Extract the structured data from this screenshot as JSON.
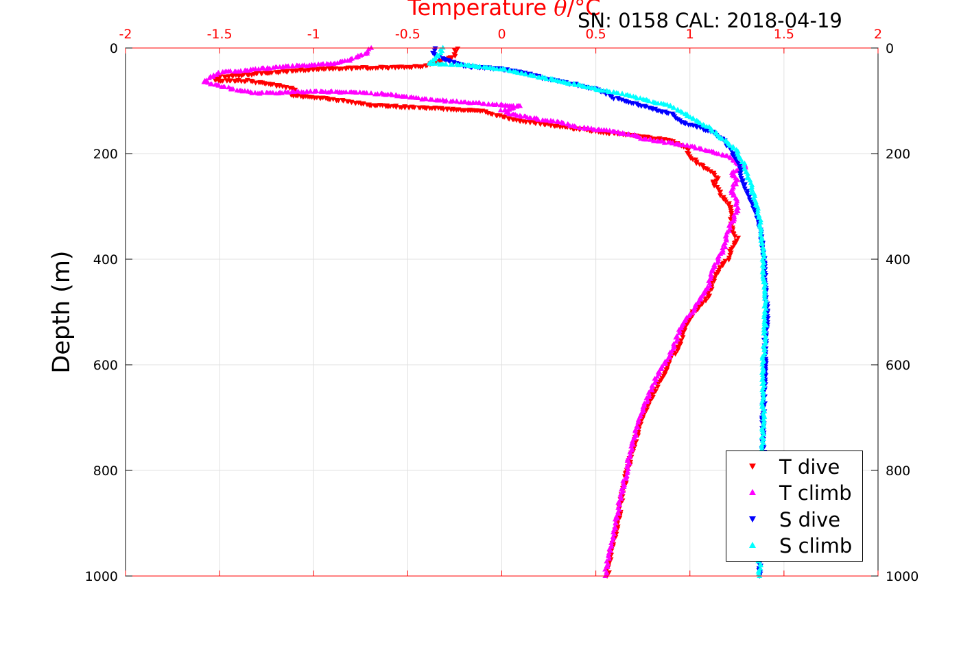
{
  "title": {
    "prefix": "Temperature ",
    "symbol": "θ",
    "suffix": "/°C"
  },
  "calibration_text": "SN: 0158  CAL: 2018-04-19",
  "ylabel": "Depth (m)",
  "colors": {
    "t_dive": "#ff0000",
    "t_climb": "#ff00ff",
    "s_dive": "#0000ff",
    "s_climb": "#00ffff",
    "top_axis": "#ff0000",
    "grid": "#e0e0e0"
  },
  "chart_data": {
    "type": "scatter",
    "title": "Temperature θ/°C",
    "xlabel": "Temperature θ/°C",
    "ylabel": "Depth (m)",
    "xlim": [
      -2,
      2
    ],
    "ylim": [
      1000,
      0
    ],
    "y_reversed": true,
    "xticks": [
      "-2",
      "-1.5",
      "-1",
      "-0.5",
      "0",
      "0.5",
      "1",
      "1.5",
      "2"
    ],
    "yticks": [
      "0",
      "200",
      "400",
      "600",
      "800",
      "1000"
    ],
    "grid": true,
    "legend_position": "bottom-right",
    "series": [
      {
        "name": "T dive",
        "marker": "triangle-down",
        "color": "#ff0000",
        "points": [
          [
            -0.24,
            0
          ],
          [
            -0.25,
            8
          ],
          [
            -0.25,
            16
          ],
          [
            -0.42,
            35
          ],
          [
            -1.0,
            40
          ],
          [
            -1.5,
            55
          ],
          [
            -1.52,
            62
          ],
          [
            -1.35,
            62
          ],
          [
            -1.25,
            68
          ],
          [
            -1.12,
            75
          ],
          [
            -1.1,
            82
          ],
          [
            -1.12,
            90
          ],
          [
            -0.95,
            95
          ],
          [
            -0.85,
            100
          ],
          [
            -0.7,
            108
          ],
          [
            -0.5,
            112
          ],
          [
            -0.35,
            114
          ],
          [
            -0.1,
            120
          ],
          [
            0.0,
            130
          ],
          [
            0.1,
            138
          ],
          [
            0.3,
            148
          ],
          [
            0.5,
            158
          ],
          [
            0.7,
            166
          ],
          [
            0.9,
            175
          ],
          [
            0.98,
            190
          ],
          [
            1.0,
            205
          ],
          [
            1.05,
            220
          ],
          [
            1.12,
            235
          ],
          [
            1.15,
            248
          ],
          [
            1.12,
            255
          ],
          [
            1.15,
            268
          ],
          [
            1.18,
            285
          ],
          [
            1.22,
            300
          ],
          [
            1.22,
            320
          ],
          [
            1.22,
            340
          ],
          [
            1.25,
            360
          ],
          [
            1.22,
            380
          ],
          [
            1.2,
            400
          ],
          [
            1.15,
            420
          ],
          [
            1.12,
            445
          ],
          [
            1.1,
            470
          ],
          [
            1.02,
            500
          ],
          [
            0.97,
            530
          ],
          [
            0.95,
            560
          ],
          [
            0.9,
            590
          ],
          [
            0.85,
            625
          ],
          [
            0.8,
            660
          ],
          [
            0.75,
            695
          ],
          [
            0.72,
            730
          ],
          [
            0.69,
            770
          ],
          [
            0.66,
            810
          ],
          [
            0.64,
            850
          ],
          [
            0.62,
            890
          ],
          [
            0.6,
            925
          ],
          [
            0.58,
            960
          ],
          [
            0.56,
            1000
          ]
        ]
      },
      {
        "name": "T climb",
        "marker": "triangle-up",
        "color": "#ff00ff",
        "points": [
          [
            -0.7,
            0
          ],
          [
            -0.72,
            10
          ],
          [
            -0.8,
            22
          ],
          [
            -0.9,
            30
          ],
          [
            -1.15,
            35
          ],
          [
            -1.35,
            42
          ],
          [
            -1.5,
            46
          ],
          [
            -1.55,
            55
          ],
          [
            -1.58,
            65
          ],
          [
            -1.5,
            72
          ],
          [
            -1.4,
            80
          ],
          [
            -1.3,
            86
          ],
          [
            -1.0,
            82
          ],
          [
            -0.8,
            84
          ],
          [
            -0.6,
            88
          ],
          [
            -0.45,
            95
          ],
          [
            -0.3,
            100
          ],
          [
            -0.1,
            105
          ],
          [
            0.1,
            110
          ],
          [
            0.0,
            118
          ],
          [
            0.05,
            125
          ],
          [
            0.2,
            135
          ],
          [
            0.3,
            140
          ],
          [
            0.4,
            150
          ],
          [
            0.55,
            156
          ],
          [
            0.7,
            165
          ],
          [
            0.75,
            172
          ],
          [
            0.9,
            180
          ],
          [
            1.0,
            186
          ],
          [
            1.1,
            195
          ],
          [
            1.2,
            205
          ],
          [
            1.25,
            218
          ],
          [
            1.3,
            225
          ],
          [
            1.22,
            235
          ],
          [
            1.25,
            250
          ],
          [
            1.22,
            270
          ],
          [
            1.25,
            290
          ],
          [
            1.25,
            310
          ],
          [
            1.22,
            330
          ],
          [
            1.2,
            350
          ],
          [
            1.18,
            380
          ],
          [
            1.15,
            400
          ],
          [
            1.12,
            420
          ],
          [
            1.1,
            450
          ],
          [
            1.05,
            480
          ],
          [
            1.0,
            505
          ],
          [
            0.95,
            530
          ],
          [
            0.92,
            560
          ],
          [
            0.88,
            590
          ],
          [
            0.82,
            625
          ],
          [
            0.78,
            660
          ],
          [
            0.74,
            695
          ],
          [
            0.71,
            730
          ],
          [
            0.68,
            770
          ],
          [
            0.66,
            810
          ],
          [
            0.63,
            850
          ],
          [
            0.61,
            890
          ],
          [
            0.59,
            925
          ],
          [
            0.57,
            960
          ],
          [
            0.55,
            1000
          ]
        ]
      },
      {
        "name": "S dive",
        "marker": "triangle-down",
        "color": "#0000ff",
        "points": [
          [
            -0.36,
            0
          ],
          [
            -0.36,
            8
          ],
          [
            -0.35,
            15
          ],
          [
            -0.2,
            34
          ],
          [
            -0.1,
            37
          ],
          [
            0.0,
            40
          ],
          [
            0.1,
            45
          ],
          [
            0.2,
            55
          ],
          [
            0.3,
            62
          ],
          [
            0.4,
            70
          ],
          [
            0.5,
            78
          ],
          [
            0.55,
            85
          ],
          [
            0.6,
            95
          ],
          [
            0.7,
            105
          ],
          [
            0.8,
            115
          ],
          [
            0.9,
            125
          ],
          [
            0.95,
            140
          ],
          [
            1.05,
            150
          ],
          [
            1.12,
            160
          ],
          [
            1.18,
            175
          ],
          [
            1.22,
            195
          ],
          [
            1.25,
            212
          ],
          [
            1.27,
            230
          ],
          [
            1.28,
            250
          ],
          [
            1.3,
            270
          ],
          [
            1.32,
            290
          ],
          [
            1.35,
            310
          ],
          [
            1.37,
            335
          ],
          [
            1.38,
            360
          ],
          [
            1.39,
            380
          ],
          [
            1.4,
            410
          ],
          [
            1.4,
            450
          ],
          [
            1.41,
            500
          ],
          [
            1.4,
            560
          ],
          [
            1.4,
            620
          ],
          [
            1.39,
            680
          ],
          [
            1.39,
            740
          ],
          [
            1.39,
            800
          ],
          [
            1.38,
            860
          ],
          [
            1.38,
            920
          ],
          [
            1.37,
            1000
          ]
        ]
      },
      {
        "name": "S climb",
        "marker": "triangle-up",
        "color": "#00ffff",
        "points": [
          [
            -0.32,
            0
          ],
          [
            -0.32,
            6
          ],
          [
            -0.38,
            30
          ],
          [
            -0.2,
            32
          ],
          [
            0.0,
            40
          ],
          [
            0.1,
            48
          ],
          [
            0.2,
            55
          ],
          [
            0.3,
            62
          ],
          [
            0.4,
            70
          ],
          [
            0.5,
            78
          ],
          [
            0.6,
            85
          ],
          [
            0.7,
            92
          ],
          [
            0.8,
            102
          ],
          [
            0.9,
            110
          ],
          [
            0.95,
            120
          ],
          [
            1.0,
            130
          ],
          [
            1.05,
            140
          ],
          [
            1.1,
            150
          ],
          [
            1.15,
            165
          ],
          [
            1.2,
            180
          ],
          [
            1.25,
            195
          ],
          [
            1.28,
            215
          ],
          [
            1.3,
            235
          ],
          [
            1.32,
            255
          ],
          [
            1.34,
            280
          ],
          [
            1.36,
            300
          ],
          [
            1.37,
            325
          ],
          [
            1.38,
            350
          ],
          [
            1.39,
            380
          ],
          [
            1.39,
            420
          ],
          [
            1.4,
            470
          ],
          [
            1.4,
            530
          ],
          [
            1.39,
            600
          ],
          [
            1.39,
            660
          ],
          [
            1.39,
            720
          ],
          [
            1.38,
            780
          ],
          [
            1.38,
            840
          ],
          [
            1.38,
            900
          ],
          [
            1.37,
            950
          ],
          [
            1.37,
            1000
          ]
        ]
      }
    ]
  }
}
